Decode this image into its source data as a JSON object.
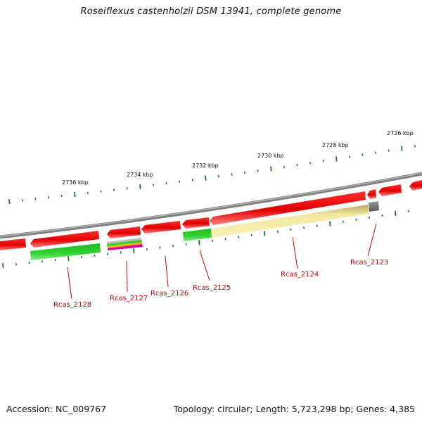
{
  "title": "Roseiflexus castenholzii DSM 13941, complete genome",
  "footer": {
    "accession": "Accession: NC_009767",
    "summary": "Topology: circular; Length: 5,723,298 bp; Genes: 4,385"
  },
  "kbp_labels": [
    "2736 kbp",
    "2734 kbp",
    "2732 kbp",
    "2730 kbp",
    "2728 kbp",
    "2726 kbp"
  ],
  "gene_labels": [
    "Rcas_2128",
    "Rcas_2127",
    "Rcas_2126",
    "Rcas_2125",
    "Rcas_2124",
    "Rcas_2123"
  ],
  "colors": {
    "backbone": "#808080",
    "gene_red": "#e60000",
    "cds_green": "#2ecc2e",
    "cds_yellow": "#f0e68c",
    "cds_gray": "#555555",
    "tick": "#1a7a1a",
    "label": "#cc0000"
  }
}
